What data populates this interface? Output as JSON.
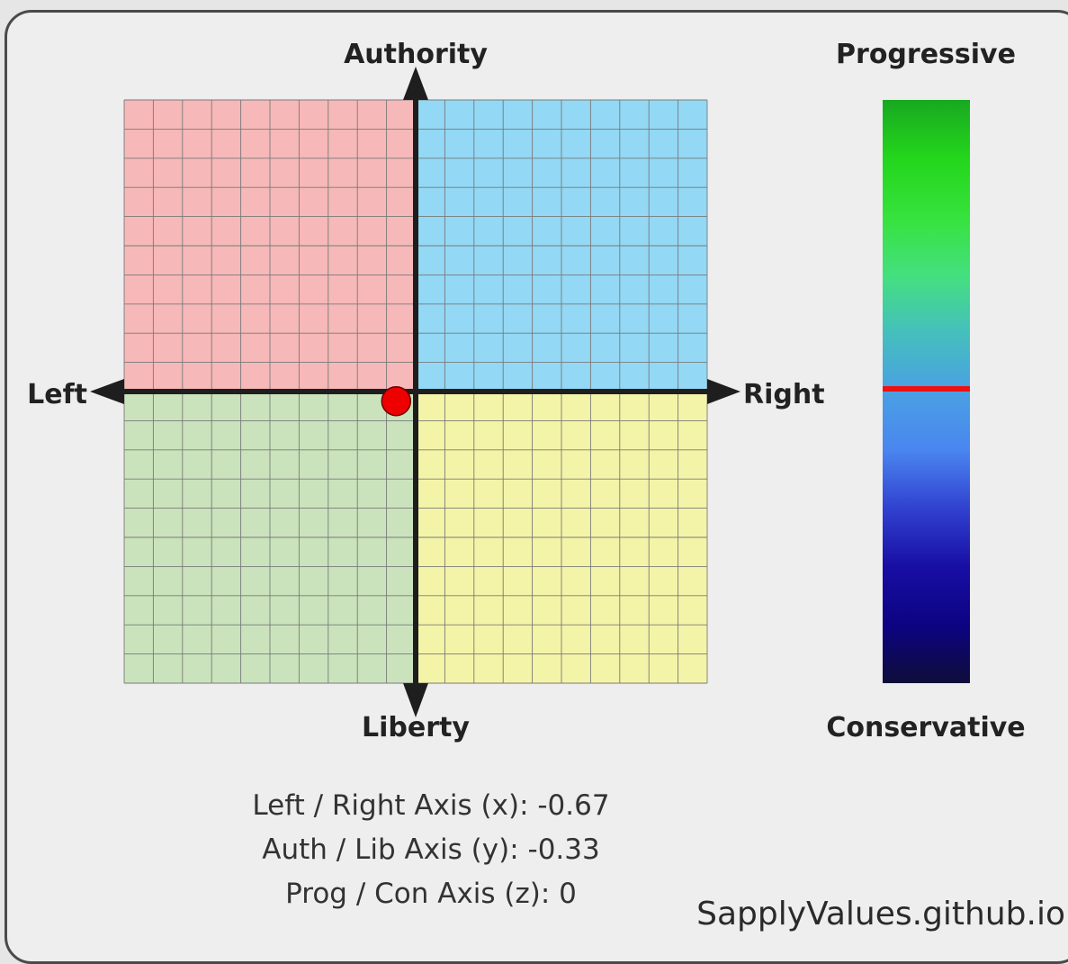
{
  "chart_data": {
    "type": "scatter",
    "labels": {
      "top": "Authority",
      "bottom": "Liberty",
      "left": "Left",
      "right": "Right",
      "scale_top": "Progressive",
      "scale_bottom": "Conservative"
    },
    "xlim": [
      -10,
      10
    ],
    "ylim": [
      -10,
      10
    ],
    "zlim": [
      -10,
      10
    ],
    "grid_divisions": 20,
    "grid": true,
    "quadrants": {
      "top_left": "#f6b8b8",
      "top_right": "#93d8f4",
      "bottom_left": "#cae3bc",
      "bottom_right": "#f4f4a8"
    },
    "point": {
      "x": -0.67,
      "y": -0.33,
      "z": 0,
      "color": "#ee0000"
    },
    "scale_gradient": [
      "#19a821",
      "#23d61c",
      "#36e23c",
      "#44e07e",
      "#45bfbd",
      "#4aa0e3",
      "#4a86f0",
      "#3142d0",
      "#180ea4",
      "#0c0383",
      "#0f0d39"
    ],
    "scale_marker_color": "#ee1111",
    "readouts": [
      "Left / Right Axis (x): -0.67",
      "Auth / Lib Axis (y): -0.33",
      "Prog / Con Axis (z): 0"
    ],
    "source": "SapplyValues.github.io"
  }
}
